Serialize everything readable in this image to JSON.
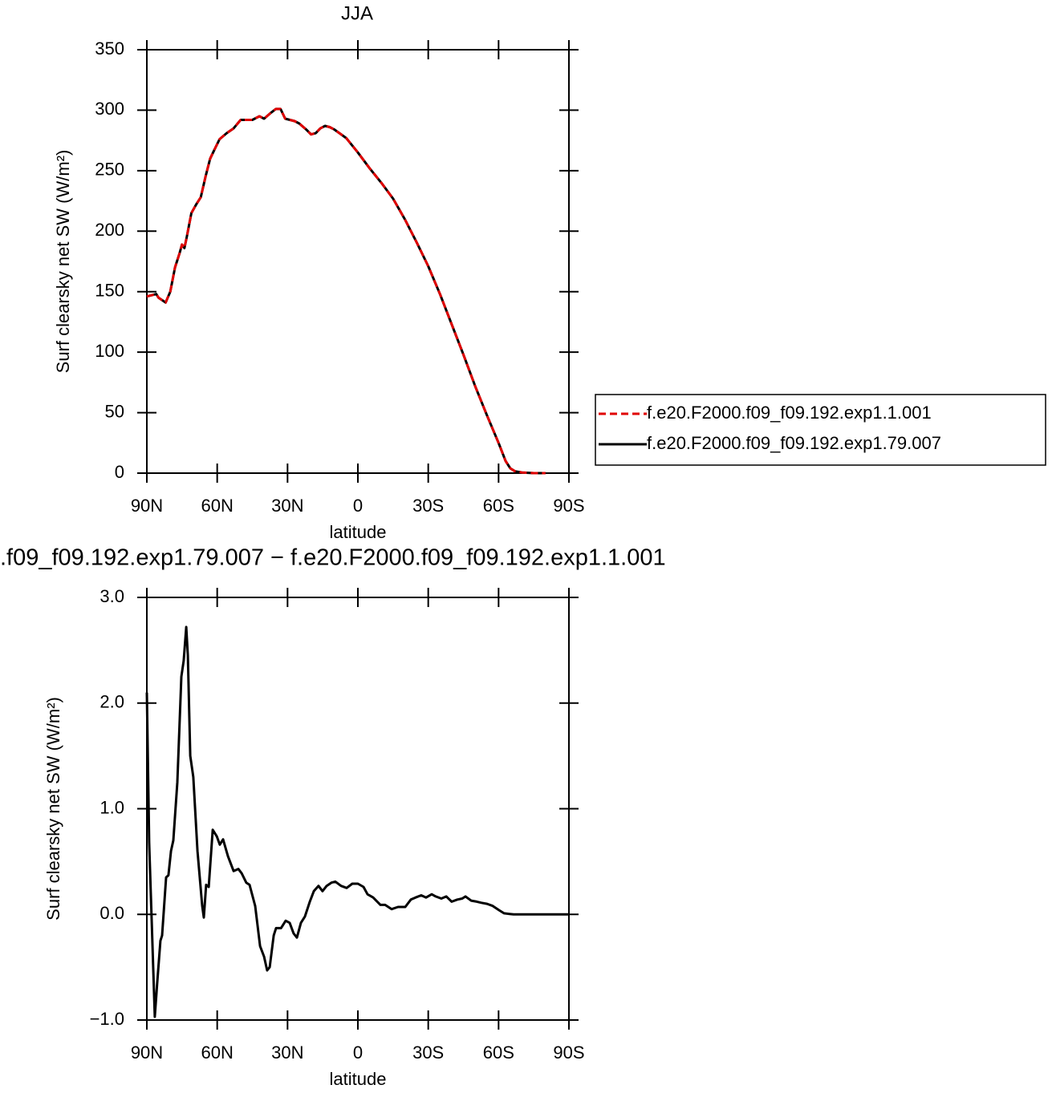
{
  "chart_data": [
    {
      "type": "line",
      "title": "JJA",
      "xlabel": "latitude",
      "ylabel": "Surf clearsky net SW (W/m²)",
      "x": [
        90,
        88,
        86,
        85,
        82,
        80,
        78,
        76,
        75,
        74,
        73,
        71,
        69,
        67,
        65,
        63,
        61,
        59,
        56,
        53,
        50,
        47,
        45,
        42,
        40,
        37,
        35,
        33,
        31,
        29,
        27,
        25,
        22,
        20,
        18,
        16,
        14,
        12,
        10,
        5,
        0,
        -5,
        -10,
        -15,
        -20,
        -25,
        -30,
        -35,
        -40,
        -45,
        -50,
        -55,
        -60,
        -63,
        -65,
        -67,
        -70,
        -75,
        -80
      ],
      "series": [
        {
          "name": "f.e20.F2000.f09_f09.192.exp1.79.007",
          "color": "#000000",
          "dash": "solid",
          "values": [
            146,
            147,
            148,
            145,
            141,
            150,
            170,
            182,
            189,
            186,
            195,
            215,
            222,
            228,
            245,
            260,
            268,
            276,
            281,
            285,
            292,
            292,
            292,
            295,
            293,
            298,
            301,
            301,
            293,
            292,
            291,
            289,
            284,
            280,
            281,
            285,
            287,
            286,
            284,
            277,
            265,
            252,
            240,
            227,
            210,
            191,
            171,
            148,
            123,
            98,
            72,
            48,
            25,
            10,
            4,
            1.5,
            0.5,
            0,
            0
          ]
        },
        {
          "name": "f.e20.F2000.f09_f09.192.exp1.1.001",
          "color": "#e00000",
          "dash": "dashed",
          "values": [
            146,
            147,
            148,
            145,
            141,
            150,
            170,
            182,
            189,
            186,
            195,
            215,
            222,
            228,
            245,
            260,
            268,
            276,
            281,
            285,
            292,
            292,
            292,
            295,
            293,
            298,
            301,
            301,
            293,
            292,
            291,
            289,
            284,
            280,
            281,
            285,
            287,
            286,
            284,
            277,
            265,
            252,
            240,
            227,
            210,
            191,
            171,
            148,
            123,
            98,
            72,
            48,
            25,
            10,
            4,
            1.5,
            0.5,
            0,
            0
          ]
        }
      ],
      "legend_order": [
        1,
        0
      ],
      "legend": "right",
      "xlim": [
        90,
        -90
      ],
      "xticks": [
        {
          "value": 90,
          "label": "90N"
        },
        {
          "value": 60,
          "label": "60N"
        },
        {
          "value": 30,
          "label": "30N"
        },
        0,
        {
          "value": -30,
          "label": "30S"
        },
        {
          "value": -60,
          "label": "60S"
        },
        {
          "value": -90,
          "label": "90S"
        }
      ],
      "ylim": [
        0,
        350
      ],
      "yticks": [
        0,
        50,
        100,
        150,
        200,
        250,
        300,
        350
      ]
    },
    {
      "type": "line",
      "title": ".f09_f09.192.exp1.79.007 − f.e20.F2000.f09_f09.192.exp1.1.001",
      "xlabel": "latitude",
      "ylabel": "Surf clearsky net SW (W/m²)",
      "x": [
        90,
        89,
        86.6,
        85.6,
        84.2,
        83.5,
        81.8,
        80.8,
        79.7,
        78.7,
        77,
        75.3,
        74.3,
        73.2,
        72.5,
        71.5,
        70.2,
        68.4,
        66.4,
        65.7,
        64.7,
        63.6,
        61.9,
        60.2,
        58.9,
        57.5,
        55.4,
        53,
        51,
        49.6,
        47.6,
        46.2,
        43.8,
        41.7,
        40,
        38.7,
        37.6,
        35.9,
        34.9,
        32.8,
        30.8,
        29.1,
        27.4,
        26,
        24.3,
        22.6,
        20.5,
        18.8,
        16.8,
        15.1,
        13.3,
        11.3,
        9.6,
        7.2,
        4.8,
        2.4,
        0,
        -2.4,
        -4.1,
        -6.5,
        -9.6,
        -11.6,
        -14.4,
        -17.1,
        -20.2,
        -22.6,
        -24.6,
        -27,
        -29.1,
        -31.5,
        -33.2,
        -35.6,
        -37.7,
        -40,
        -42.4,
        -44.5,
        -45.9,
        -48.3,
        -50.7,
        -52.7,
        -55.1,
        -57.5,
        -60.2,
        -62.3,
        -66.4,
        -90
      ],
      "series": [
        {
          "color": "#000000",
          "dash": "solid",
          "values": [
            2.1,
            0.68,
            -0.97,
            -0.65,
            -0.25,
            -0.2,
            0.35,
            0.37,
            0.6,
            0.7,
            1.25,
            2.25,
            2.4,
            2.72,
            2.45,
            1.5,
            1.3,
            0.6,
            0.08,
            -0.03,
            0.28,
            0.26,
            0.8,
            0.74,
            0.66,
            0.71,
            0.55,
            0.41,
            0.43,
            0.39,
            0.3,
            0.28,
            0.08,
            -0.3,
            -0.4,
            -0.53,
            -0.5,
            -0.2,
            -0.13,
            -0.13,
            -0.06,
            -0.08,
            -0.18,
            -0.22,
            -0.08,
            -0.02,
            0.12,
            0.22,
            0.27,
            0.22,
            0.27,
            0.3,
            0.31,
            0.27,
            0.25,
            0.29,
            0.29,
            0.26,
            0.19,
            0.16,
            0.09,
            0.09,
            0.05,
            0.07,
            0.07,
            0.14,
            0.16,
            0.18,
            0.16,
            0.19,
            0.17,
            0.15,
            0.17,
            0.12,
            0.14,
            0.15,
            0.17,
            0.13,
            0.12,
            0.11,
            0.1,
            0.08,
            0.04,
            0.01,
            0,
            0
          ]
        }
      ],
      "xlim": [
        90,
        -90
      ],
      "xticks": [
        {
          "value": 90,
          "label": "90N"
        },
        {
          "value": 60,
          "label": "60N"
        },
        {
          "value": 30,
          "label": "30N"
        },
        0,
        {
          "value": -30,
          "label": "30S"
        },
        {
          "value": -60,
          "label": "60S"
        },
        {
          "value": -90,
          "label": "90S"
        }
      ],
      "ylim": [
        -1,
        3
      ],
      "yticks": [
        {
          "value": -1,
          "label": "−1.0"
        },
        {
          "value": 0,
          "label": "0.0"
        },
        {
          "value": 1,
          "label": "1.0"
        },
        {
          "value": 2,
          "label": "2.0"
        },
        {
          "value": 3,
          "label": "3.0"
        }
      ]
    }
  ]
}
